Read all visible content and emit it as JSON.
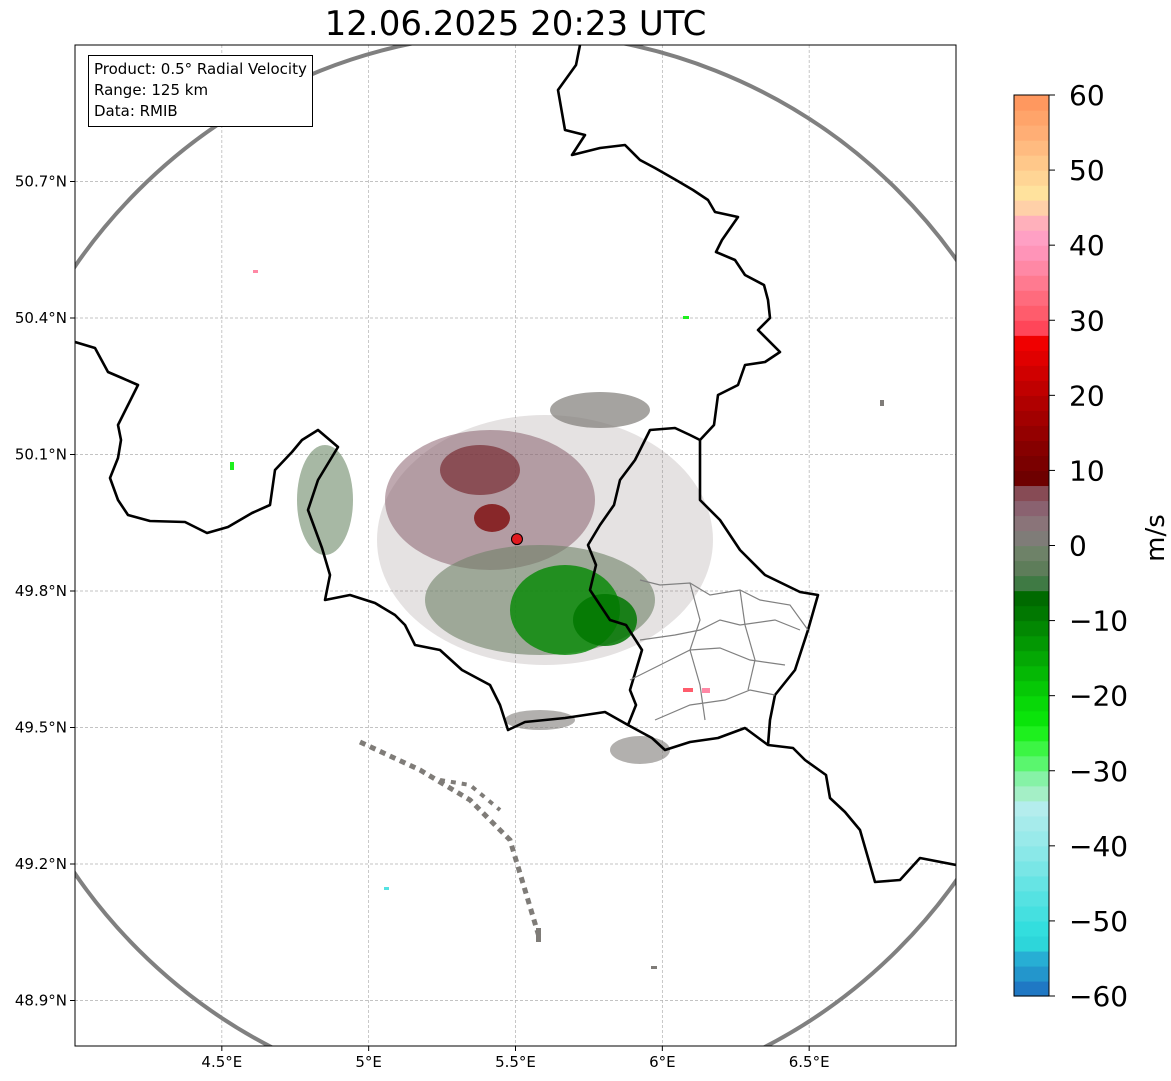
{
  "title": "12.06.2025 20:23 UTC",
  "info": {
    "product": "Product: 0.5° Radial Velocity",
    "range": "Range: 125 km",
    "source": "Data: RMIB"
  },
  "map": {
    "lon_range": [
      4.0,
      7.0
    ],
    "lat_range": [
      48.8,
      51.0
    ],
    "lon_ticks": [
      {
        "value": 4.5,
        "label": "4.5°E"
      },
      {
        "value": 5.0,
        "label": "5°E"
      },
      {
        "value": 5.5,
        "label": "5.5°E"
      },
      {
        "value": 6.0,
        "label": "6°E"
      },
      {
        "value": 6.5,
        "label": "6.5°E"
      }
    ],
    "lat_ticks": [
      {
        "value": 50.7,
        "label": "50.7°N"
      },
      {
        "value": 50.4,
        "label": "50.4°N"
      },
      {
        "value": 50.1,
        "label": "50.1°N"
      },
      {
        "value": 49.8,
        "label": "49.8°N"
      },
      {
        "value": 49.5,
        "label": "49.5°N"
      },
      {
        "value": 49.2,
        "label": "49.2°N"
      },
      {
        "value": 48.9,
        "label": "48.9°N"
      }
    ],
    "grid": true,
    "radar_site": {
      "lon": 5.505,
      "lat": 49.914
    },
    "range_ring_color": "#808080",
    "site_color": "#e0191f"
  },
  "colorbar": {
    "unit": "m/s",
    "range": [
      -60,
      60
    ],
    "ticks": [
      {
        "value": 60,
        "label": "60"
      },
      {
        "value": 50,
        "label": "50"
      },
      {
        "value": 40,
        "label": "40"
      },
      {
        "value": 30,
        "label": "30"
      },
      {
        "value": 20,
        "label": "20"
      },
      {
        "value": 10,
        "label": "10"
      },
      {
        "value": 0,
        "label": "0"
      },
      {
        "value": -10,
        "label": "−10"
      },
      {
        "value": -20,
        "label": "−20"
      },
      {
        "value": -30,
        "label": "−30"
      },
      {
        "value": -40,
        "label": "−40"
      },
      {
        "value": -50,
        "label": "−50"
      },
      {
        "value": -60,
        "label": "−60"
      }
    ],
    "bands": [
      {
        "from": -60,
        "to": -58,
        "color": "#1f78c4"
      },
      {
        "from": -58,
        "to": -56,
        "color": "#2396cc"
      },
      {
        "from": -56,
        "to": -54,
        "color": "#27aed4"
      },
      {
        "from": -54,
        "to": -52,
        "color": "#2dd6da"
      },
      {
        "from": -52,
        "to": -50,
        "color": "#33dede"
      },
      {
        "from": -50,
        "to": -48,
        "color": "#45e0e0"
      },
      {
        "from": -48,
        "to": -46,
        "color": "#55e2e2"
      },
      {
        "from": -46,
        "to": -44,
        "color": "#66e4e4"
      },
      {
        "from": -44,
        "to": -42,
        "color": "#79e6e6"
      },
      {
        "from": -42,
        "to": -40,
        "color": "#8ae8e8"
      },
      {
        "from": -40,
        "to": -38,
        "color": "#99eaea"
      },
      {
        "from": -38,
        "to": -36,
        "color": "#a6ebeb"
      },
      {
        "from": -36,
        "to": -34,
        "color": "#b4eded"
      },
      {
        "from": -34,
        "to": -32,
        "color": "#a4efc6"
      },
      {
        "from": -32,
        "to": -30,
        "color": "#86f2a6"
      },
      {
        "from": -30,
        "to": -28,
        "color": "#5af66e"
      },
      {
        "from": -28,
        "to": -26,
        "color": "#3cf544"
      },
      {
        "from": -26,
        "to": -24,
        "color": "#1ef01e"
      },
      {
        "from": -24,
        "to": -22,
        "color": "#0ae40a"
      },
      {
        "from": -22,
        "to": -20,
        "color": "#08d808"
      },
      {
        "from": -20,
        "to": -18,
        "color": "#06c806"
      },
      {
        "from": -18,
        "to": -16,
        "color": "#05b805"
      },
      {
        "from": -16,
        "to": -14,
        "color": "#04a804"
      },
      {
        "from": -14,
        "to": -12,
        "color": "#039803"
      },
      {
        "from": -12,
        "to": -10,
        "color": "#028802"
      },
      {
        "from": -10,
        "to": -8,
        "color": "#017801"
      },
      {
        "from": -8,
        "to": -6,
        "color": "#006a00"
      },
      {
        "from": -6,
        "to": -4,
        "color": "#3f7a44"
      },
      {
        "from": -4,
        "to": -2,
        "color": "#5e7d5a"
      },
      {
        "from": -2,
        "to": 0,
        "color": "#6e8268"
      },
      {
        "from": 0,
        "to": 2,
        "color": "#7f7c78"
      },
      {
        "from": 2,
        "to": 4,
        "color": "#8a7479"
      },
      {
        "from": 4,
        "to": 6,
        "color": "#8a6270"
      },
      {
        "from": 6,
        "to": 8,
        "color": "#874b55"
      },
      {
        "from": 8,
        "to": 10,
        "color": "#6e0000"
      },
      {
        "from": 10,
        "to": 12,
        "color": "#7a0000"
      },
      {
        "from": 12,
        "to": 14,
        "color": "#860000"
      },
      {
        "from": 14,
        "to": 16,
        "color": "#940000"
      },
      {
        "from": 16,
        "to": 18,
        "color": "#a20000"
      },
      {
        "from": 18,
        "to": 20,
        "color": "#b00000"
      },
      {
        "from": 20,
        "to": 22,
        "color": "#c00000"
      },
      {
        "from": 22,
        "to": 24,
        "color": "#d00000"
      },
      {
        "from": 24,
        "to": 26,
        "color": "#e00000"
      },
      {
        "from": 26,
        "to": 28,
        "color": "#f00000"
      },
      {
        "from": 28,
        "to": 30,
        "color": "#ff4659"
      },
      {
        "from": 30,
        "to": 32,
        "color": "#ff5c6c"
      },
      {
        "from": 32,
        "to": 34,
        "color": "#ff6b7d"
      },
      {
        "from": 34,
        "to": 36,
        "color": "#ff7a90"
      },
      {
        "from": 36,
        "to": 38,
        "color": "#ff88a5"
      },
      {
        "from": 38,
        "to": 40,
        "color": "#ff94b8"
      },
      {
        "from": 40,
        "to": 42,
        "color": "#ffa0c4"
      },
      {
        "from": 42,
        "to": 44,
        "color": "#ffb0bb"
      },
      {
        "from": 44,
        "to": 46,
        "color": "#ffd0a8"
      },
      {
        "from": 46,
        "to": 48,
        "color": "#ffe29d"
      },
      {
        "from": 48,
        "to": 50,
        "color": "#ffd595"
      },
      {
        "from": 50,
        "to": 52,
        "color": "#ffc88a"
      },
      {
        "from": 52,
        "to": 54,
        "color": "#ffbb80"
      },
      {
        "from": 54,
        "to": 56,
        "color": "#ffae75"
      },
      {
        "from": 56,
        "to": 58,
        "color": "#ffa46a"
      },
      {
        "from": 58,
        "to": 60,
        "color": "#ff985f"
      }
    ]
  }
}
